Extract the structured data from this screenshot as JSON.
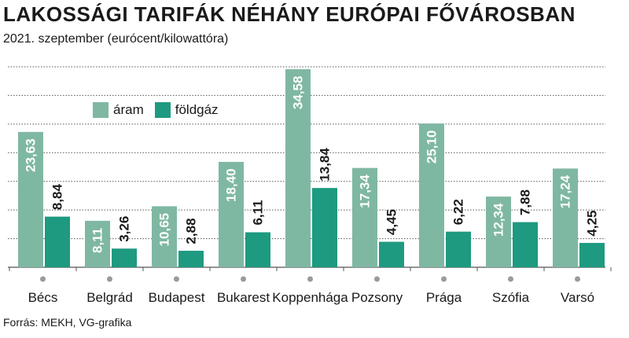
{
  "title": "LAKOSSÁGI TARIFÁK NÉHÁNY EURÓPAI FŐVÁROSBAN",
  "subtitle": "2021. szeptember (eurócent/kilowattóra)",
  "source": "Forrás: MEKH, VG-grafika",
  "colors": {
    "aram": "#7fb8a2",
    "foldgaz": "#1e9a80",
    "grid": "#555555",
    "dot": "#9a9a9a"
  },
  "chart_data": {
    "type": "bar",
    "title": "LAKOSSÁGI TARIFÁK NÉHÁNY EURÓPAI FŐVÁROSBAN",
    "subtitle": "2021. szeptember (eurócent/kilowattóra)",
    "categories": [
      "Bécs",
      "Belgrád",
      "Budapest",
      "Bukarest",
      "Koppenhága",
      "Pozsony",
      "Prága",
      "Szófia",
      "Varsó"
    ],
    "series": [
      {
        "name": "áram",
        "values": [
          23.63,
          8.11,
          10.65,
          18.4,
          34.58,
          17.34,
          25.1,
          12.34,
          17.24
        ],
        "labels": [
          "23,63",
          "8,11",
          "10,65",
          "18,40",
          "34,58",
          "17,34",
          "25,10",
          "12,34",
          "17,24"
        ]
      },
      {
        "name": "földgáz",
        "values": [
          8.84,
          3.26,
          2.88,
          6.11,
          13.84,
          4.45,
          6.22,
          7.88,
          4.25
        ],
        "labels": [
          "8,84",
          "3,26",
          "2,88",
          "6,11",
          "13,84",
          "4,45",
          "6,22",
          "7,88",
          "4,25"
        ]
      }
    ],
    "ylim": [
      0,
      35
    ],
    "grid": true,
    "legend": "top-left"
  }
}
